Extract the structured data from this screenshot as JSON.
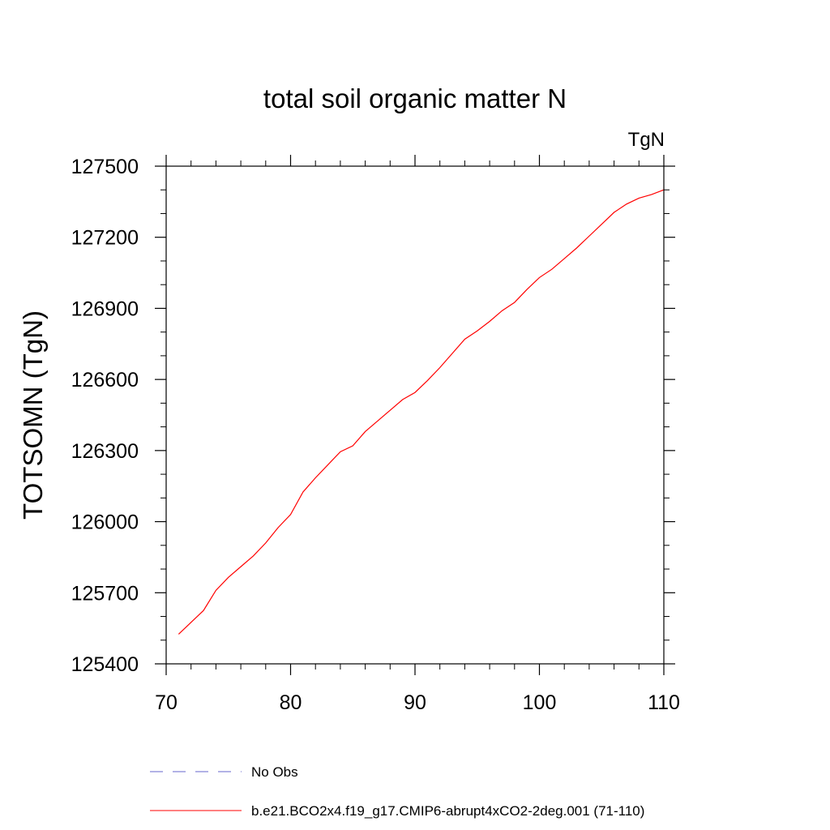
{
  "chart_data": {
    "type": "line",
    "title": "total soil organic matter N",
    "units_label": "TgN",
    "ylabel": "TOTSOMN  (TgN)",
    "xlabel": "",
    "xlim": [
      70,
      110
    ],
    "ylim": [
      125400,
      127500
    ],
    "x_ticks": [
      70,
      80,
      90,
      100,
      110
    ],
    "x_tick_labels": [
      "70",
      "80",
      "90",
      "100",
      "110"
    ],
    "y_ticks": [
      125400,
      125700,
      126000,
      126300,
      126600,
      126900,
      127200,
      127500
    ],
    "y_tick_labels": [
      "125400",
      "125700",
      "126000",
      "126300",
      "126600",
      "126900",
      "127200",
      "127500"
    ],
    "x_minor_step": 2,
    "y_minor_step": 100,
    "grid": false,
    "legend_position": "bottom",
    "series": [
      {
        "name": "No Obs",
        "color": "#6666cc",
        "dash": "dashed",
        "x": [],
        "values": []
      },
      {
        "name": "b.e21.BCO2x4.f19_g17.CMIP6-abrupt4xCO2-2deg.001 (71-110)",
        "color": "#ff0000",
        "dash": "solid",
        "x": [
          71,
          72,
          73,
          74,
          75,
          76,
          77,
          78,
          79,
          80,
          81,
          82,
          83,
          84,
          85,
          86,
          87,
          88,
          89,
          90,
          91,
          92,
          93,
          94,
          95,
          96,
          97,
          98,
          99,
          100,
          101,
          102,
          103,
          104,
          105,
          106,
          107,
          108,
          109,
          110
        ],
        "values": [
          125525,
          125575,
          125625,
          125710,
          125765,
          125810,
          125855,
          125910,
          125975,
          126030,
          126125,
          126185,
          126240,
          126295,
          126320,
          126380,
          126425,
          126470,
          126515,
          126545,
          126595,
          126650,
          126710,
          126770,
          126805,
          126845,
          126890,
          126925,
          126980,
          127030,
          127065,
          127110,
          127155,
          127205,
          127255,
          127305,
          127340,
          127365,
          127380,
          127400
        ]
      }
    ]
  }
}
